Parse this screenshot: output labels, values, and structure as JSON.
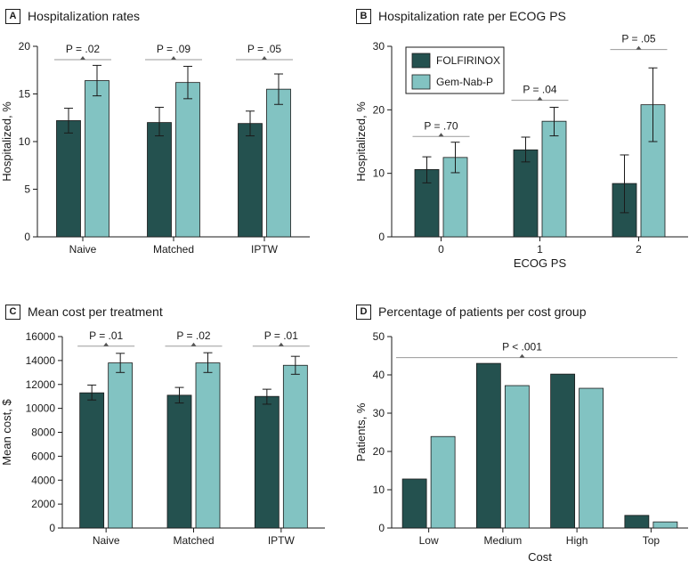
{
  "colors": {
    "folfirinox": "#24514F",
    "gemnab": "#82C3C2",
    "axis": "#1a1a1a",
    "bracket": "#9a9a9a"
  },
  "legend": [
    {
      "name": "FOLFIRINOX",
      "color": "#24514F"
    },
    {
      "name": "Gem-Nab-P",
      "color": "#82C3C2"
    }
  ],
  "chart_data": [
    {
      "panel": "A",
      "type": "bar",
      "title": "Hospitalization rates",
      "xlabel": "",
      "ylabel": "Hospitalized, %",
      "ylim": [
        0,
        20
      ],
      "yticks": [
        0,
        5,
        10,
        15,
        20
      ],
      "categories": [
        "Naive",
        "Matched",
        "IPTW"
      ],
      "series": [
        {
          "name": "FOLFIRINOX",
          "values": [
            12.2,
            12.0,
            11.9
          ],
          "err_low": [
            10.9,
            10.6,
            10.6
          ],
          "err_high": [
            13.5,
            13.6,
            13.2
          ]
        },
        {
          "name": "Gem-Nab-P",
          "values": [
            16.4,
            16.2,
            15.5
          ],
          "err_low": [
            14.8,
            14.5,
            13.9
          ],
          "err_high": [
            18.0,
            17.9,
            17.1
          ]
        }
      ],
      "p_values": [
        {
          "label": "P = .02",
          "y": 18.6
        },
        {
          "label": "P = .09",
          "y": 18.6
        },
        {
          "label": "P = .05",
          "y": 18.6
        }
      ]
    },
    {
      "panel": "B",
      "type": "bar",
      "title": "Hospitalization rate per ECOG PS",
      "xlabel": "ECOG PS",
      "ylabel": "Hospitalized, %",
      "ylim": [
        0,
        30
      ],
      "yticks": [
        0,
        10,
        20,
        30
      ],
      "categories": [
        "0",
        "1",
        "2"
      ],
      "series": [
        {
          "name": "FOLFIRINOX",
          "values": [
            10.6,
            13.7,
            8.4
          ],
          "err_low": [
            8.5,
            11.8,
            3.8
          ],
          "err_high": [
            12.6,
            15.7,
            12.9
          ]
        },
        {
          "name": "Gem-Nab-P",
          "values": [
            12.5,
            18.2,
            20.8
          ],
          "err_low": [
            10.1,
            15.9,
            15.0
          ],
          "err_high": [
            14.9,
            20.4,
            26.6
          ]
        }
      ],
      "p_values": [
        {
          "label": "P = .70",
          "y": 15.8
        },
        {
          "label": "P = .04",
          "y": 21.5
        },
        {
          "label": "P = .05",
          "y": 29.5
        }
      ]
    },
    {
      "panel": "C",
      "type": "bar",
      "title": "Mean cost per treatment",
      "xlabel": "",
      "ylabel": "Mean cost, $",
      "ylim": [
        0,
        16000
      ],
      "yticks": [
        0,
        2000,
        4000,
        6000,
        8000,
        10000,
        12000,
        14000,
        16000
      ],
      "categories": [
        "Naive",
        "Matched",
        "IPTW"
      ],
      "series": [
        {
          "name": "FOLFIRINOX",
          "values": [
            11300,
            11100,
            11000
          ],
          "err_low": [
            10700,
            10450,
            10350
          ],
          "err_high": [
            11950,
            11750,
            11600
          ]
        },
        {
          "name": "Gem-Nab-P",
          "values": [
            13800,
            13800,
            13600
          ],
          "err_low": [
            13000,
            13000,
            12850
          ],
          "err_high": [
            14600,
            14650,
            14350
          ]
        }
      ],
      "p_values": [
        {
          "label": "P = .01",
          "y": 15200
        },
        {
          "label": "P = .02",
          "y": 15200
        },
        {
          "label": "P = .01",
          "y": 15200
        }
      ]
    },
    {
      "panel": "D",
      "type": "bar",
      "title": "Percentage of patients per cost group",
      "xlabel": "Cost",
      "ylabel": "Patients, %",
      "ylim": [
        0,
        50
      ],
      "yticks": [
        0,
        10,
        20,
        30,
        40,
        50
      ],
      "categories": [
        "Low",
        "Medium",
        "High",
        "Top"
      ],
      "series": [
        {
          "name": "FOLFIRINOX",
          "values": [
            12.8,
            43.0,
            40.2,
            3.3
          ]
        },
        {
          "name": "Gem-Nab-P",
          "values": [
            23.9,
            37.2,
            36.5,
            1.6
          ]
        }
      ],
      "p_values": [
        {
          "label": "P < .001",
          "y": 44.5,
          "span": "all"
        }
      ]
    }
  ]
}
